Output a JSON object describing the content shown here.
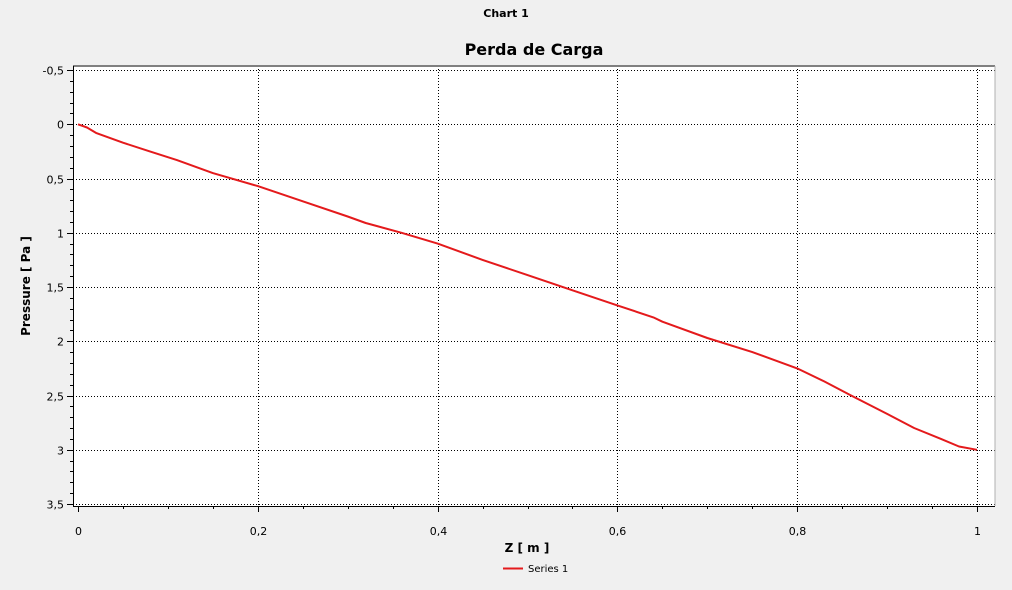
{
  "window": {
    "title": "Chart 1"
  },
  "chart_data": {
    "type": "line",
    "title": "Perda de Carga",
    "xlabel": "Z [ m ]",
    "ylabel": "Pressure [ Pa ]",
    "xlim": [
      0,
      1
    ],
    "ylim": [
      -0.5,
      3.5
    ],
    "y_inverted": true,
    "x_ticks": [
      "0",
      "0,2",
      "0,4",
      "0,6",
      "0,8",
      "1"
    ],
    "x_tick_values": [
      0,
      0.2,
      0.4,
      0.6,
      0.8,
      1
    ],
    "y_ticks": [
      "-0,5",
      "0",
      "0,5",
      "1",
      "1,5",
      "2",
      "2,5",
      "3",
      "3,5"
    ],
    "y_tick_values": [
      -0.5,
      0,
      0.5,
      1,
      1.5,
      2,
      2.5,
      3,
      3.5
    ],
    "grid": true,
    "legend_position": "bottom-center",
    "series": [
      {
        "name": "Series 1",
        "color": "#e41a1c",
        "x": [
          0,
          0.01,
          0.02,
          0.05,
          0.08,
          0.11,
          0.12,
          0.15,
          0.2,
          0.25,
          0.3,
          0.32,
          0.36,
          0.4,
          0.45,
          0.5,
          0.55,
          0.6,
          0.64,
          0.65,
          0.7,
          0.75,
          0.8,
          0.83,
          0.86,
          0.9,
          0.93,
          0.96,
          0.98,
          1.0
        ],
        "y": [
          0,
          0.03,
          0.08,
          0.17,
          0.25,
          0.33,
          0.36,
          0.45,
          0.57,
          0.71,
          0.85,
          0.91,
          1.0,
          1.1,
          1.25,
          1.39,
          1.53,
          1.67,
          1.78,
          1.82,
          1.97,
          2.1,
          2.25,
          2.37,
          2.5,
          2.67,
          2.8,
          2.9,
          2.97,
          3.0
        ]
      }
    ]
  }
}
